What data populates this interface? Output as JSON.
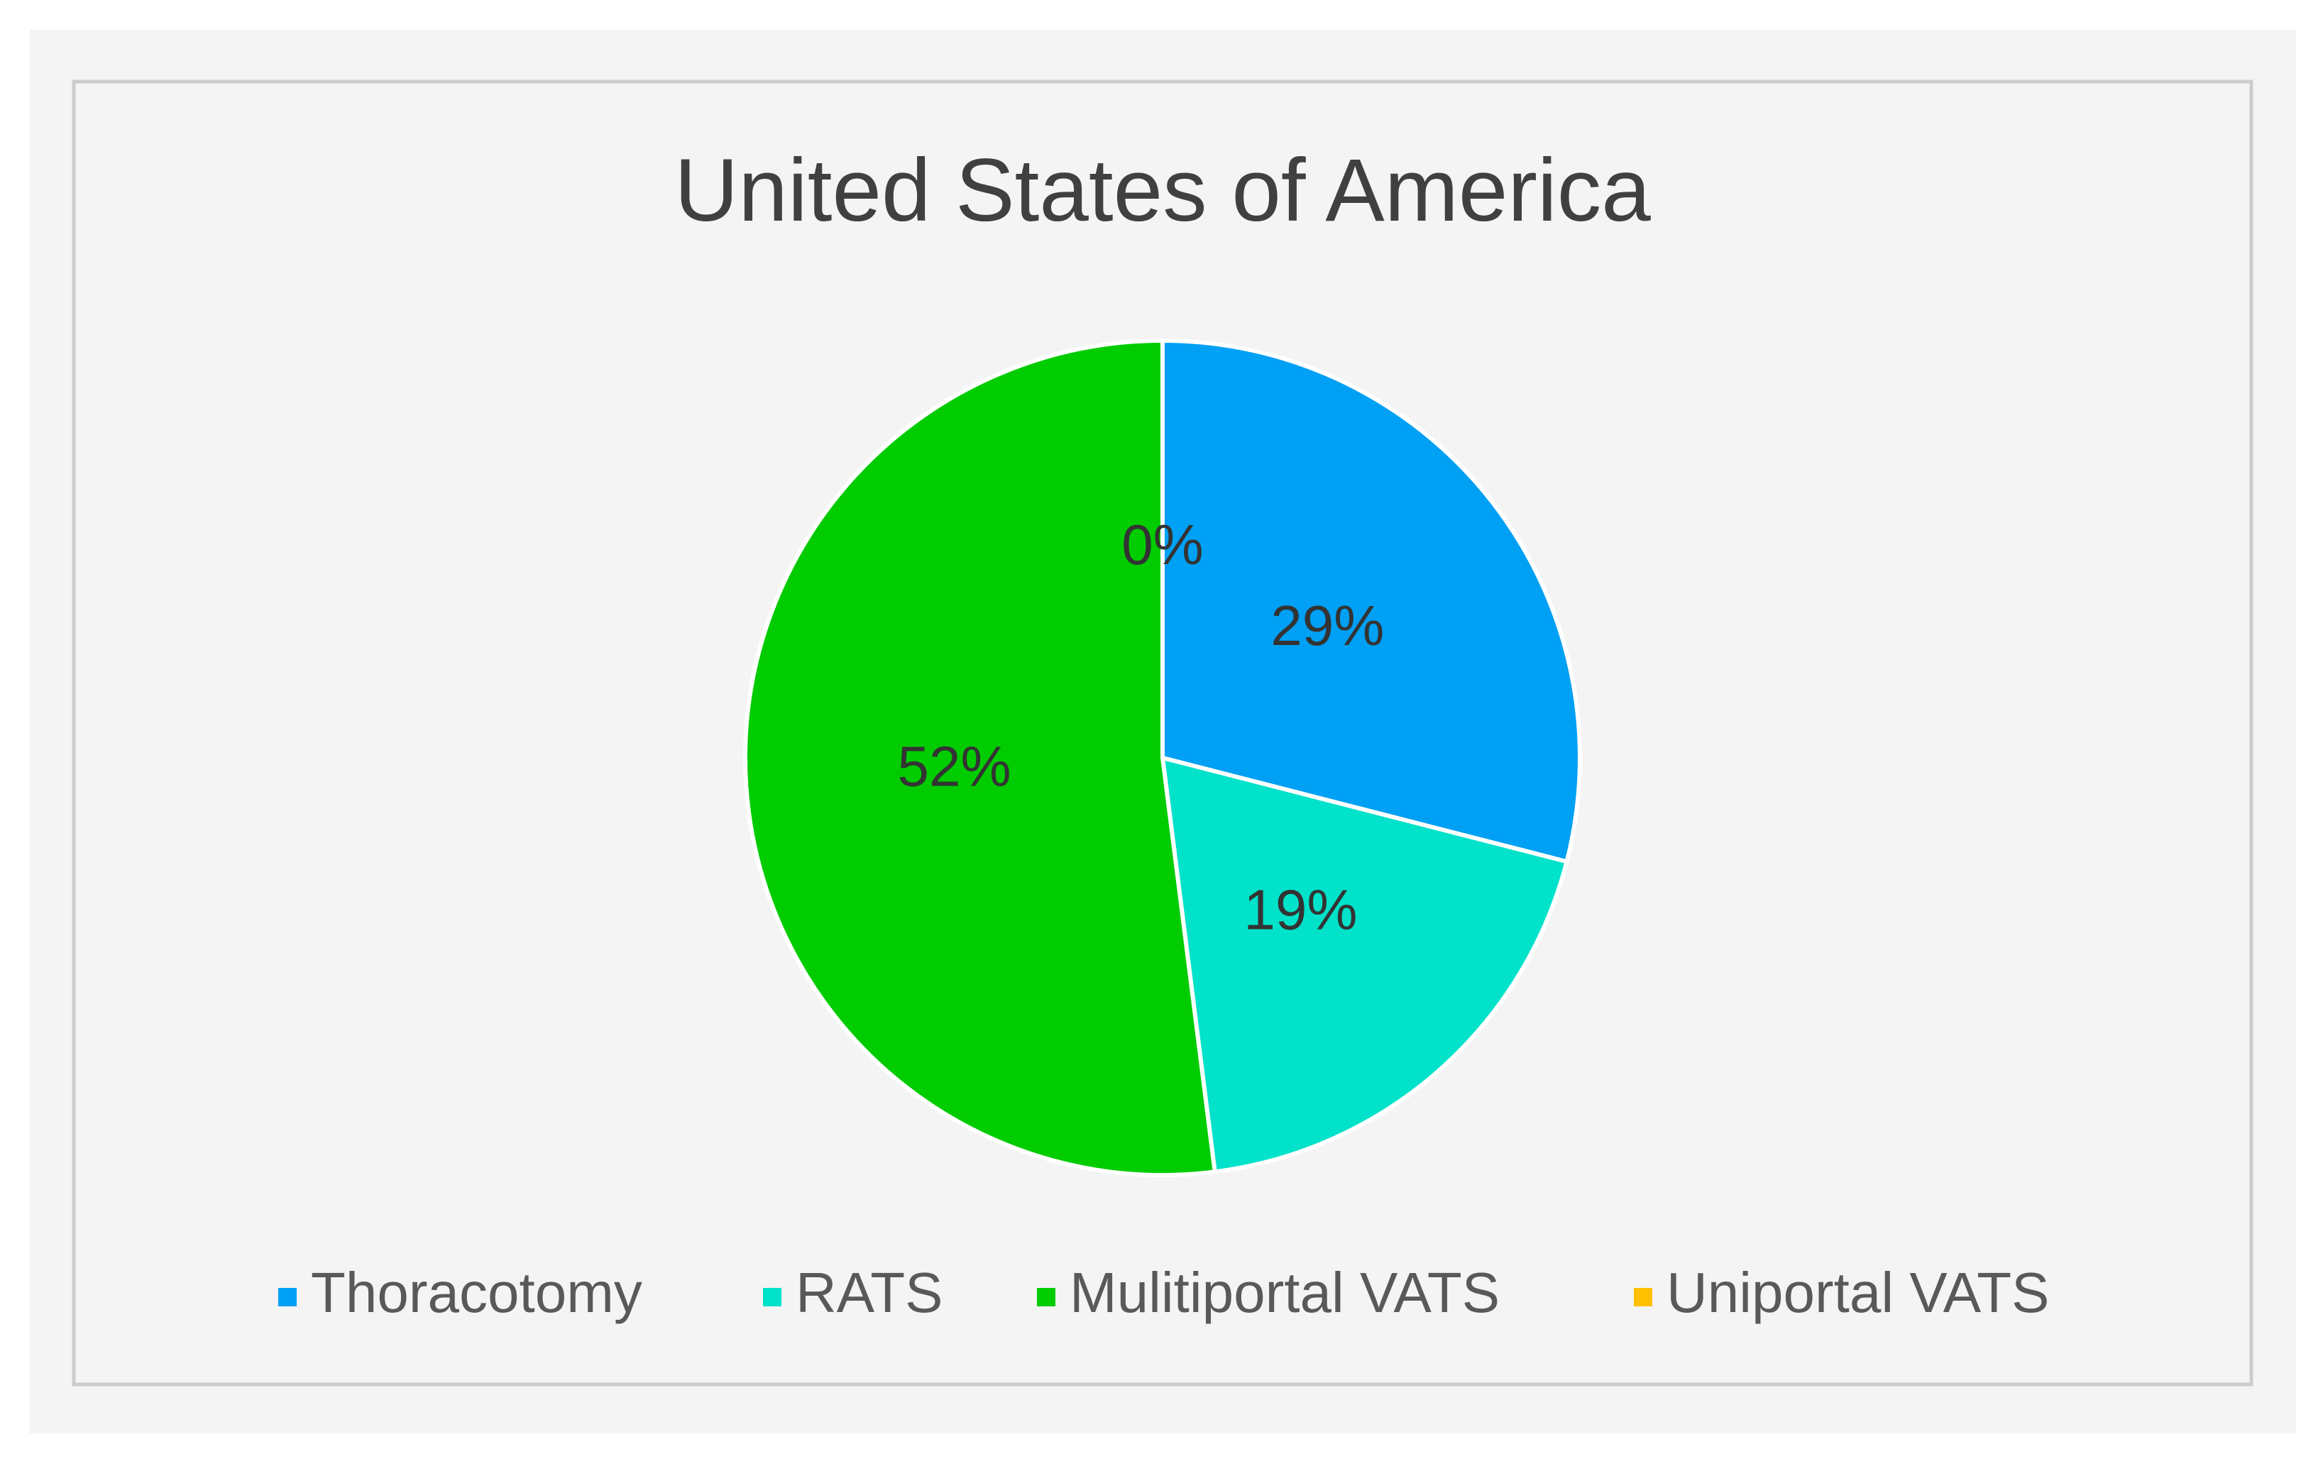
{
  "chart_data": {
    "type": "pie",
    "title": "United States of America",
    "categories": [
      "Thoracotomy",
      "RATS",
      "Mulitiportal VATS",
      "Uniportal VATS"
    ],
    "values": [
      29,
      19,
      52,
      0
    ],
    "value_labels": [
      "29%",
      "19%",
      "52%",
      "0%"
    ],
    "colors": [
      "#00a0f4",
      "#00e2c9",
      "#00cc00",
      "#ffc000"
    ],
    "legend": "bottom"
  }
}
